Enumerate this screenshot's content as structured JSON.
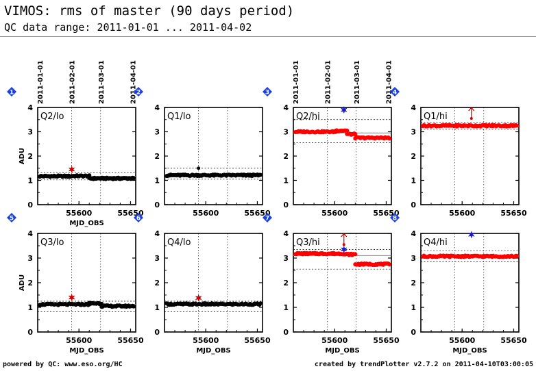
{
  "header": {
    "title": "VIMOS: rms of master (90 days period)",
    "subtitle": "QC data range: 2011-01-01 ... 2011-04-02"
  },
  "footer": {
    "left": "powered by QC: www.eso.org/HC",
    "right": "created by trendPlotter v2.7.2 on 2011-04-10T03:00:05"
  },
  "colors": {
    "black_series": "#000000",
    "red_series": "#ff0000",
    "outlier_red": "#cc0000",
    "outlier_blue": "#1a1acc",
    "badge": "#1a3fe0",
    "reference_line": "#888888"
  },
  "chart_data": [
    {
      "type": "scatter",
      "index": "1",
      "label": "Q2/lo",
      "color": "black",
      "xlim": [
        55560,
        55655
      ],
      "ylim": [
        0,
        4
      ],
      "xlabel": "MJD_OBS",
      "ylabel": "ADU",
      "xticks": [
        55600,
        55650
      ],
      "yticks": [
        0,
        1,
        2,
        3,
        4
      ],
      "date_ticks": [
        "2011-01-01",
        "2011-02-01",
        "2011-03-01",
        "2011-04-01"
      ],
      "level_segments": [
        [
          55562,
          55593,
          1.17
        ],
        [
          55593,
          55610,
          1.18
        ],
        [
          55610,
          55653,
          1.08
        ]
      ],
      "ref_line": 1.17,
      "bounds": [
        1.02,
        1.32
      ],
      "outliers": [
        {
          "x": 55593,
          "y": 1.45,
          "symbol": "star",
          "color": "#cc0000"
        }
      ]
    },
    {
      "type": "scatter",
      "index": "2",
      "label": "Q1/lo",
      "color": "black",
      "xlim": [
        55560,
        55655
      ],
      "ylim": [
        0,
        4
      ],
      "xlabel": "",
      "ylabel": "",
      "xticks": [
        55600,
        55650
      ],
      "yticks": [
        0,
        1,
        2,
        3,
        4
      ],
      "date_ticks": [],
      "level_segments": [
        [
          55562,
          55653,
          1.21
        ]
      ],
      "ref_line": 1.21,
      "bounds": [
        1.05,
        1.5
      ],
      "outliers": [
        {
          "x": 55593,
          "y": 1.5,
          "symbol": "dot",
          "color": "#000000"
        }
      ]
    },
    {
      "type": "scatter",
      "index": "3",
      "label": "Q2/hi",
      "color": "red",
      "xlim": [
        55560,
        55655
      ],
      "ylim": [
        0,
        4
      ],
      "xlabel": "",
      "ylabel": "",
      "xticks": [
        55600,
        55650
      ],
      "yticks": [
        0,
        1,
        2,
        3,
        4
      ],
      "date_ticks": [
        "2011-01-01",
        "2011-02-01",
        "2011-03-01",
        "2011-04-01"
      ],
      "level_segments": [
        [
          55562,
          55601,
          3.0
        ],
        [
          55601,
          55612,
          3.05
        ],
        [
          55612,
          55620,
          2.9
        ],
        [
          55620,
          55653,
          2.75
        ]
      ],
      "ref_line": 2.95,
      "bounds": [
        2.55,
        3.5
      ],
      "outliers": [
        {
          "x": 55609,
          "y": 3.9,
          "symbol": "star",
          "color": "#1a1acc"
        }
      ]
    },
    {
      "type": "scatter",
      "index": "4",
      "label": "Q1/hi",
      "color": "red",
      "xlim": [
        55560,
        55655
      ],
      "ylim": [
        0,
        4
      ],
      "xlabel": "",
      "ylabel": "",
      "xticks": [
        55600,
        55650
      ],
      "yticks": [
        0,
        1,
        2,
        3,
        4
      ],
      "date_ticks": [],
      "level_segments": [
        [
          55562,
          55653,
          3.25
        ]
      ],
      "ref_line": 3.2,
      "bounds": [
        3.1,
        3.4
      ],
      "outliers": [
        {
          "x": 55609,
          "y": 4.0,
          "symbol": "arrow",
          "color": "#cc0000"
        }
      ]
    },
    {
      "type": "scatter",
      "index": "5",
      "label": "Q3/lo",
      "color": "black",
      "xlim": [
        55560,
        55655
      ],
      "ylim": [
        0,
        4
      ],
      "xlabel": "MJD_OBS",
      "ylabel": "ADU",
      "xticks": [
        55600,
        55650
      ],
      "yticks": [
        0,
        1,
        2,
        3,
        4
      ],
      "date_ticks": [],
      "level_segments": [
        [
          55562,
          55610,
          1.12
        ],
        [
          55610,
          55622,
          1.16
        ],
        [
          55622,
          55653,
          1.05
        ]
      ],
      "ref_line": 1.12,
      "bounds": [
        0.82,
        1.25
      ],
      "outliers": [
        {
          "x": 55593,
          "y": 1.4,
          "symbol": "star",
          "color": "#cc0000"
        }
      ]
    },
    {
      "type": "scatter",
      "index": "6",
      "label": "Q4/lo",
      "color": "black",
      "xlim": [
        55560,
        55655
      ],
      "ylim": [
        0,
        4
      ],
      "xlabel": "MJD_OBS",
      "ylabel": "",
      "xticks": [
        55600,
        55650
      ],
      "yticks": [
        0,
        1,
        2,
        3,
        4
      ],
      "date_ticks": [],
      "level_segments": [
        [
          55562,
          55653,
          1.13
        ]
      ],
      "ref_line": 1.13,
      "bounds": [
        0.82,
        1.25
      ],
      "outliers": [
        {
          "x": 55593,
          "y": 1.38,
          "symbol": "star",
          "color": "#cc0000"
        }
      ]
    },
    {
      "type": "scatter",
      "index": "7",
      "label": "Q3/hi",
      "color": "red",
      "xlim": [
        55560,
        55655
      ],
      "ylim": [
        0,
        4
      ],
      "xlabel": "MJD_OBS",
      "ylabel": "",
      "xticks": [
        55600,
        55650
      ],
      "yticks": [
        0,
        1,
        2,
        3,
        4
      ],
      "date_ticks": [],
      "level_segments": [
        [
          55562,
          55609,
          3.18
        ],
        [
          55609,
          55620,
          3.15
        ],
        [
          55620,
          55653,
          2.75
        ]
      ],
      "ref_line": 3.1,
      "bounds": [
        2.55,
        3.35
      ],
      "outliers": [
        {
          "x": 55609,
          "y": 3.35,
          "symbol": "star",
          "color": "#1a1acc"
        },
        {
          "x": 55609,
          "y": 4.0,
          "symbol": "arrow",
          "color": "#cc0000"
        }
      ]
    },
    {
      "type": "scatter",
      "index": "8",
      "label": "Q4/hi",
      "color": "red",
      "xlim": [
        55560,
        55655
      ],
      "ylim": [
        0,
        4
      ],
      "xlabel": "MJD_OBS",
      "ylabel": "",
      "xticks": [
        55600,
        55650
      ],
      "yticks": [
        0,
        1,
        2,
        3,
        4
      ],
      "date_ticks": [],
      "level_segments": [
        [
          55562,
          55653,
          3.07
        ]
      ],
      "ref_line": 3.05,
      "bounds": [
        2.85,
        3.3
      ],
      "outliers": [
        {
          "x": 55609,
          "y": 3.95,
          "symbol": "star",
          "color": "#1a1acc"
        }
      ]
    }
  ]
}
